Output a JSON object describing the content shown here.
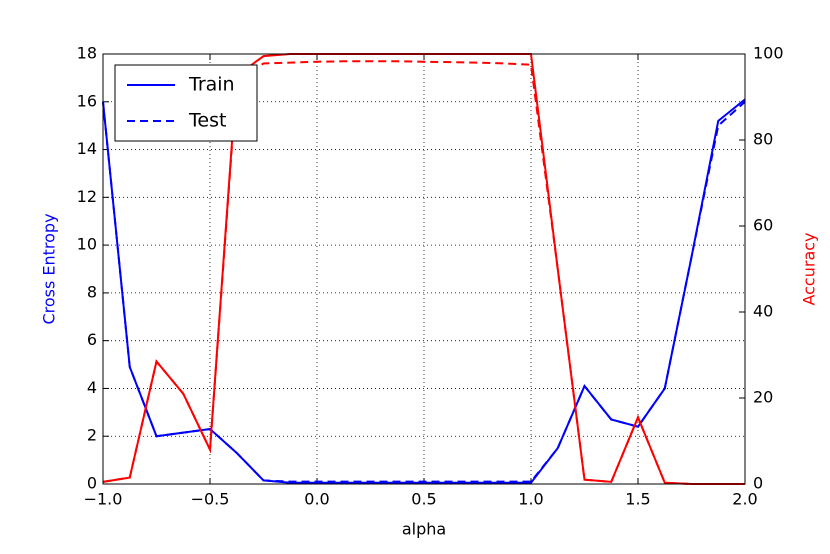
{
  "chart_data": {
    "type": "line",
    "xlabel": "alpha",
    "ylabel": "Cross Entropy",
    "y2label": "Accuracy",
    "ylabel_color": "#0000ff",
    "y2label_color": "#ff0000",
    "x": [
      -1,
      -0.875,
      -0.75,
      -0.625,
      -0.5,
      -0.375,
      -0.25,
      -0.125,
      0,
      0.125,
      0.25,
      0.375,
      0.5,
      0.625,
      0.75,
      0.875,
      1,
      1.125,
      1.25,
      1.375,
      1.5,
      1.625,
      1.75,
      1.875,
      2
    ],
    "series": [
      {
        "name": "Train",
        "color": "#0000ff",
        "linestyle": "solid",
        "values": [
          16,
          4.9,
          2.0,
          2.15,
          2.3,
          1.3,
          0.15,
          0.05,
          0.05,
          0.05,
          0.05,
          0.05,
          0.05,
          0.05,
          0.05,
          0.05,
          0.05,
          1.5,
          4.1,
          2.7,
          2.4,
          4.0,
          9.5,
          15.2,
          16.1
        ]
      },
      {
        "name": "Test",
        "color": "#0000ff",
        "linestyle": "dashed",
        "values": [
          16,
          4.9,
          2.0,
          2.15,
          2.3,
          1.3,
          0.15,
          0.1,
          0.1,
          0.1,
          0.1,
          0.1,
          0.1,
          0.1,
          0.1,
          0.1,
          0.1,
          1.5,
          4.1,
          2.7,
          2.4,
          4.0,
          9.5,
          15.0,
          16.0
        ]
      },
      {
        "color": "#ff0000",
        "linestyle": "solid",
        "axis": "y2",
        "values": [
          0.5,
          1.5,
          28.5,
          21,
          8,
          95,
          99.5,
          100,
          100,
          100,
          100,
          100,
          100,
          100,
          100,
          100,
          100,
          50,
          1,
          0.5,
          15.5,
          0.3,
          0,
          0,
          0
        ]
      },
      {
        "color": "#ff0000",
        "linestyle": "dashed",
        "axis": "y2",
        "values": [
          0.5,
          1.5,
          28.5,
          21,
          8,
          94,
          97.8,
          98,
          98.2,
          98.3,
          98.3,
          98.3,
          98.2,
          98.1,
          98,
          97.8,
          97.5,
          50,
          1,
          0.5,
          15.5,
          0.3,
          0,
          0,
          0
        ]
      }
    ],
    "xlim": [
      -1,
      2
    ],
    "xticks": [
      {
        "value": -1,
        "label": "−1.0"
      },
      {
        "value": -0.5,
        "label": "−0.5"
      },
      {
        "value": 0,
        "label": "0.0"
      },
      {
        "value": 0.5,
        "label": "0.5"
      },
      {
        "value": 1,
        "label": "1.0"
      },
      {
        "value": 1.5,
        "label": "1.5"
      },
      {
        "value": 2,
        "label": "2.0"
      }
    ],
    "ylim": [
      0,
      18
    ],
    "yticks": [
      0,
      2,
      4,
      6,
      8,
      10,
      12,
      14,
      16,
      18
    ],
    "y2lim": [
      0,
      100
    ],
    "y2ticks": [
      0,
      20,
      40,
      60,
      80,
      100
    ],
    "grid": true,
    "legend": "upper left"
  }
}
